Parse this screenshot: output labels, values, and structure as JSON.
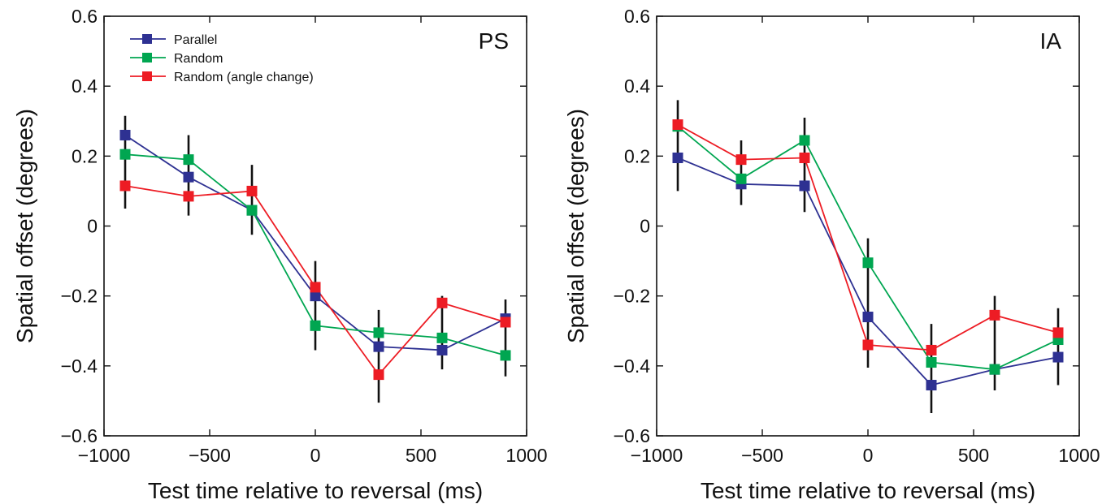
{
  "chart_data": [
    {
      "type": "line",
      "panel_label": "PS",
      "xlabel": "Test time relative to reversal (ms)",
      "ylabel": "Spatial offset (degrees)",
      "xlim": [
        -1000,
        1000
      ],
      "ylim": [
        -0.6,
        0.6
      ],
      "xticks": [
        -1000,
        -500,
        0,
        500,
        1000
      ],
      "yticks": [
        -0.6,
        -0.4,
        -0.2,
        0,
        0.2,
        0.4,
        0.6
      ],
      "xtick_labels": [
        "−1000",
        "−500",
        "0",
        "500",
        "1000"
      ],
      "ytick_labels": [
        "−0.6",
        "−0.4",
        "−0.2",
        "0",
        "0.2",
        "0.4",
        "0.6"
      ],
      "grid": false,
      "legend": {
        "position": "top-left",
        "entries": [
          "Parallel",
          "Random",
          "Random (angle change)"
        ]
      },
      "x": [
        -900,
        -600,
        -300,
        0,
        300,
        600,
        900
      ],
      "errorbars": [
        {
          "x": -900,
          "low": 0.05,
          "high": 0.315
        },
        {
          "x": -600,
          "low": 0.03,
          "high": 0.26
        },
        {
          "x": -300,
          "low": -0.025,
          "high": 0.175
        },
        {
          "x": 0,
          "low": -0.355,
          "high": -0.1
        },
        {
          "x": 300,
          "low": -0.505,
          "high": -0.24
        },
        {
          "x": 600,
          "low": -0.41,
          "high": -0.2
        },
        {
          "x": 900,
          "low": -0.43,
          "high": -0.21
        }
      ],
      "series": [
        {
          "name": "Parallel",
          "color": "#2e3192",
          "values": [
            0.26,
            0.14,
            0.045,
            -0.2,
            -0.345,
            -0.355,
            -0.265
          ]
        },
        {
          "name": "Random",
          "color": "#00a651",
          "values": [
            0.205,
            0.19,
            0.045,
            -0.285,
            -0.305,
            -0.32,
            -0.37
          ]
        },
        {
          "name": "Random (angle change)",
          "color": "#ed1c24",
          "values": [
            0.115,
            0.085,
            0.1,
            -0.175,
            -0.425,
            -0.22,
            -0.275
          ]
        }
      ]
    },
    {
      "type": "line",
      "panel_label": "IA",
      "xlabel": "Test time relative to reversal (ms)",
      "ylabel": "Spatial offset (degrees)",
      "xlim": [
        -1000,
        1000
      ],
      "ylim": [
        -0.6,
        0.6
      ],
      "xticks": [
        -1000,
        -500,
        0,
        500,
        1000
      ],
      "yticks": [
        -0.6,
        -0.4,
        -0.2,
        0,
        0.2,
        0.4,
        0.6
      ],
      "xtick_labels": [
        "−1000",
        "−500",
        "0",
        "500",
        "1000"
      ],
      "ytick_labels": [
        "−0.6",
        "−0.4",
        "−0.2",
        "0",
        "0.2",
        "0.4",
        "0.6"
      ],
      "grid": false,
      "x": [
        -900,
        -600,
        -300,
        0,
        300,
        600,
        900
      ],
      "errorbars": [
        {
          "x": -900,
          "low": 0.1,
          "high": 0.36
        },
        {
          "x": -600,
          "low": 0.06,
          "high": 0.245
        },
        {
          "x": -300,
          "low": 0.04,
          "high": 0.31
        },
        {
          "x": 0,
          "low": -0.405,
          "high": -0.035
        },
        {
          "x": 300,
          "low": -0.535,
          "high": -0.28
        },
        {
          "x": 600,
          "low": -0.47,
          "high": -0.2
        },
        {
          "x": 900,
          "low": -0.455,
          "high": -0.235
        }
      ],
      "series": [
        {
          "name": "Parallel",
          "color": "#2e3192",
          "values": [
            0.195,
            0.12,
            0.115,
            -0.26,
            -0.455,
            -0.41,
            -0.375
          ]
        },
        {
          "name": "Random",
          "color": "#00a651",
          "values": [
            0.285,
            0.135,
            0.245,
            -0.105,
            -0.39,
            -0.41,
            -0.325
          ]
        },
        {
          "name": "Random (angle change)",
          "color": "#ed1c24",
          "values": [
            0.29,
            0.19,
            0.195,
            -0.34,
            -0.355,
            -0.255,
            -0.305
          ]
        }
      ]
    }
  ]
}
